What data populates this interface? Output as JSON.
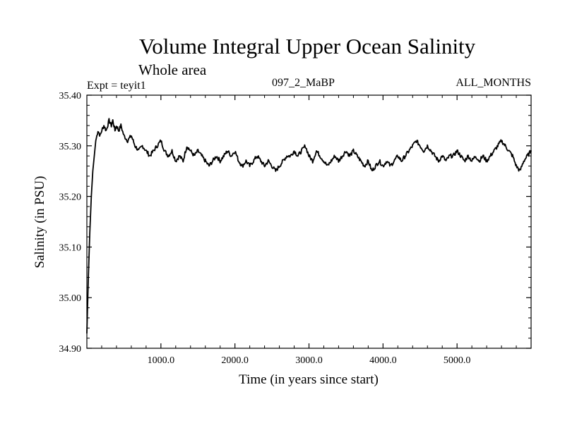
{
  "chart_data": {
    "type": "line",
    "title": "Volume Integral Upper Ocean Salinity",
    "subtitle": "Whole area",
    "experiment_label": "Expt = teyit1",
    "run_label": "097_2_MaBP",
    "months_label": "ALL_MONTHS",
    "xlabel": "Time (in years since start)",
    "ylabel": "Salinity (in PSU)",
    "xlim": [
      0,
      6000
    ],
    "ylim": [
      34.9,
      35.4
    ],
    "x_ticks": [
      1000,
      2000,
      3000,
      4000,
      5000
    ],
    "x_tick_labels": [
      "1000.0",
      "2000.0",
      "3000.0",
      "4000.0",
      "5000.0"
    ],
    "y_ticks": [
      34.9,
      35.0,
      35.1,
      35.2,
      35.3,
      35.4
    ],
    "y_tick_labels": [
      "34.90",
      "35.00",
      "35.10",
      "35.20",
      "35.30",
      "35.40"
    ],
    "grid": false,
    "line_color": "#000000",
    "series": [
      {
        "name": "Salinity",
        "x": [
          0,
          20,
          40,
          60,
          80,
          100,
          120,
          150,
          180,
          200,
          230,
          260,
          300,
          330,
          350,
          380,
          400,
          430,
          460,
          500,
          550,
          600,
          650,
          700,
          750,
          800,
          850,
          900,
          950,
          1000,
          1050,
          1100,
          1150,
          1200,
          1250,
          1300,
          1350,
          1400,
          1450,
          1500,
          1550,
          1600,
          1650,
          1700,
          1750,
          1800,
          1850,
          1900,
          1950,
          2000,
          2050,
          2100,
          2150,
          2200,
          2250,
          2300,
          2350,
          2400,
          2450,
          2500,
          2550,
          2600,
          2650,
          2700,
          2750,
          2800,
          2850,
          2900,
          2950,
          3000,
          3050,
          3100,
          3150,
          3200,
          3250,
          3300,
          3350,
          3400,
          3450,
          3500,
          3550,
          3600,
          3650,
          3700,
          3750,
          3800,
          3850,
          3900,
          3950,
          4000,
          4050,
          4100,
          4150,
          4200,
          4250,
          4300,
          4350,
          4400,
          4450,
          4500,
          4550,
          4600,
          4650,
          4700,
          4750,
          4800,
          4850,
          4900,
          4950,
          5000,
          5050,
          5100,
          5150,
          5200,
          5250,
          5300,
          5350,
          5400,
          5450,
          5500,
          5550,
          5600,
          5650,
          5700,
          5750,
          5800,
          5850,
          5900,
          5950,
          6000
        ],
        "values": [
          34.93,
          35.04,
          35.13,
          35.2,
          35.25,
          35.28,
          35.31,
          35.33,
          35.32,
          35.33,
          35.34,
          35.33,
          35.35,
          35.34,
          35.35,
          35.33,
          35.34,
          35.33,
          35.34,
          35.32,
          35.31,
          35.32,
          35.3,
          35.29,
          35.3,
          35.29,
          35.28,
          35.29,
          35.3,
          35.31,
          35.29,
          35.28,
          35.29,
          35.27,
          35.28,
          35.27,
          35.3,
          35.29,
          35.28,
          35.29,
          35.28,
          35.27,
          35.26,
          35.27,
          35.28,
          35.27,
          35.28,
          35.29,
          35.28,
          35.29,
          35.27,
          35.26,
          35.27,
          35.26,
          35.27,
          35.28,
          35.27,
          35.26,
          35.27,
          35.26,
          35.25,
          35.26,
          35.27,
          35.28,
          35.28,
          35.29,
          35.28,
          35.29,
          35.3,
          35.28,
          35.27,
          35.29,
          35.28,
          35.27,
          35.26,
          35.27,
          35.28,
          35.27,
          35.28,
          35.29,
          35.28,
          35.29,
          35.28,
          35.27,
          35.26,
          35.27,
          35.25,
          35.26,
          35.27,
          35.26,
          35.27,
          35.26,
          35.27,
          35.28,
          35.27,
          35.28,
          35.29,
          35.3,
          35.31,
          35.3,
          35.29,
          35.3,
          35.29,
          35.28,
          35.27,
          35.28,
          35.27,
          35.28,
          35.28,
          35.29,
          35.28,
          35.27,
          35.28,
          35.27,
          35.28,
          35.27,
          35.28,
          35.27,
          35.28,
          35.29,
          35.3,
          35.31,
          35.3,
          35.29,
          35.28,
          35.26,
          35.25,
          35.27,
          35.28,
          35.29
        ]
      }
    ]
  }
}
